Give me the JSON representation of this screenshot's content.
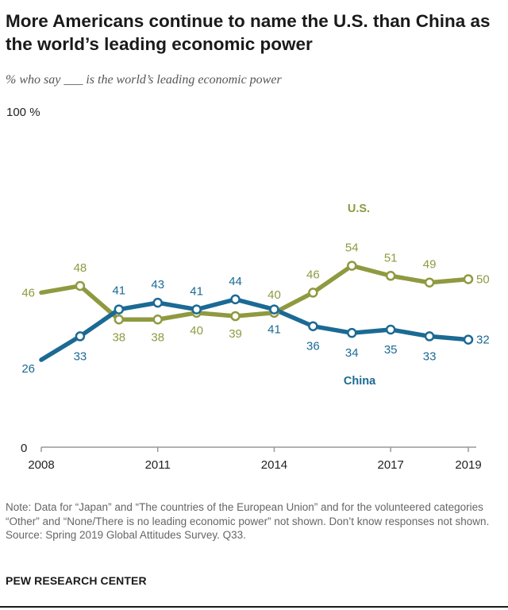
{
  "title": "More Americans continue to name the U.S. than China as the world’s leading economic power",
  "subtitle": "% who say ___ is the world’s leading economic power",
  "notes": {
    "note": "Note: Data for “Japan” and “The countries of the European Union” and for the volunteered categories “Other” and “None/There is no leading economic power” not shown. Don’t know responses not shown.",
    "source": "Source: Spring 2019 Global Attitudes Survey. Q33."
  },
  "brand": "PEW RESEARCH CENTER",
  "chart_data": {
    "type": "line",
    "title": "More Americans continue to name the U.S. than China as the world’s leading economic power",
    "subtitle": "% who say ___ is the world’s leading economic power",
    "x": [
      2008,
      2009,
      2010,
      2011,
      2012,
      2013,
      2014,
      2015,
      2016,
      2017,
      2018,
      2019
    ],
    "x_tick_labels": [
      "2008",
      "2011",
      "2014",
      "2017",
      "2019"
    ],
    "x_ticks": [
      2008,
      2011,
      2014,
      2017,
      2019
    ],
    "y_tick_labels": [
      {
        "value": 100,
        "label": "100 %"
      },
      {
        "value": 0,
        "label": "0"
      }
    ],
    "ylim": [
      0,
      100
    ],
    "grid": false,
    "series": [
      {
        "name": "U.S.",
        "color": "#8f9a40",
        "values": [
          46,
          48,
          38,
          38,
          40,
          39,
          40,
          46,
          54,
          51,
          49,
          50
        ]
      },
      {
        "name": "China",
        "color": "#1b6a94",
        "values": [
          26,
          33,
          41,
          43,
          41,
          44,
          41,
          36,
          34,
          35,
          33,
          32
        ]
      }
    ]
  }
}
